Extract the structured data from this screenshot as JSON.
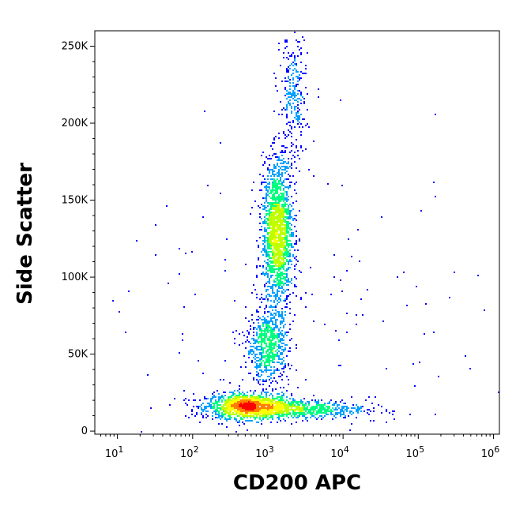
{
  "chart_data": {
    "type": "scatter",
    "subtype": "flow-cytometry-density-dot-plot",
    "xlabel": "CD200 APC",
    "ylabel": "Side Scatter",
    "x_scale": "log",
    "xlim": [
      5,
      1200000
    ],
    "ylim": [
      -2000,
      260000
    ],
    "x_tick_values": [
      10,
      100,
      1000,
      10000,
      100000,
      1000000
    ],
    "x_tick_labels": [
      {
        "base": "10",
        "exp": "1"
      },
      {
        "base": "10",
        "exp": "2"
      },
      {
        "base": "10",
        "exp": "3"
      },
      {
        "base": "10",
        "exp": "4"
      },
      {
        "base": "10",
        "exp": "5"
      },
      {
        "base": "10",
        "exp": "6"
      }
    ],
    "y_tick_values": [
      0,
      50000,
      100000,
      150000,
      200000,
      250000
    ],
    "y_tick_labels": [
      "0",
      "50K",
      "100K",
      "150K",
      "200K",
      "250K"
    ],
    "grid": false,
    "legend": "none",
    "color_scale": [
      "#0000ff",
      "#00a0ff",
      "#00ff80",
      "#c0ff00",
      "#ffff00",
      "#ff8000",
      "#ff0000"
    ],
    "populations": [
      {
        "x_center": 550,
        "y_center": 16000,
        "x_spread_decades": 0.28,
        "y_spread": 4000,
        "peak_density": "high",
        "count": 1500
      },
      {
        "x_center": 2500,
        "y_center": 14000,
        "x_spread_decades": 0.45,
        "y_spread": 3000,
        "peak_density": "medium",
        "count": 700
      },
      {
        "x_center": 1350,
        "y_center": 128000,
        "x_spread_decades": 0.1,
        "y_spread": 24000,
        "peak_density": "high",
        "count": 1800
      },
      {
        "x_center": 1000,
        "y_center": 55000,
        "x_spread_decades": 0.14,
        "y_spread": 12000,
        "peak_density": "medium",
        "count": 700
      },
      {
        "x_center": 2200,
        "y_center": 215000,
        "x_spread_decades": 0.09,
        "y_spread": 22000,
        "peak_density": "low",
        "count": 300
      },
      {
        "x_center": 3000,
        "y_center": 60000,
        "x_spread_decades": 1.2,
        "y_spread": 60000,
        "peak_density": "sparse",
        "count": 200
      }
    ]
  }
}
